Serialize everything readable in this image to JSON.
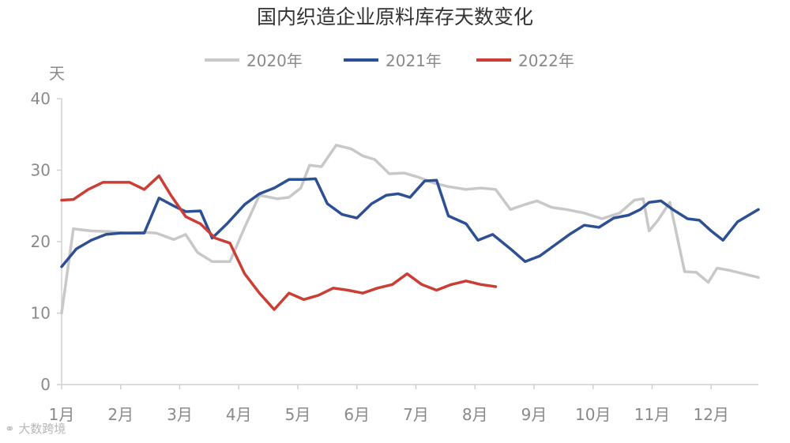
{
  "chart_data": {
    "type": "line",
    "title": "国内织造企业原料库存天数变化",
    "ylabel": "天",
    "ylim": [
      0,
      40
    ],
    "yticks": [
      0,
      10,
      20,
      30,
      40
    ],
    "xticks": [
      "1月",
      "2月",
      "3月",
      "4月",
      "5月",
      "6月",
      "7月",
      "8月",
      "9月",
      "10月",
      "11月",
      "12月"
    ],
    "xlim": [
      1,
      12.8
    ],
    "grid": false,
    "legend": "top",
    "series": [
      {
        "name": "2020年",
        "color": "#c8c8c8",
        "x": [
          1.0,
          1.2,
          1.5,
          1.8,
          2.1,
          2.4,
          2.6,
          2.9,
          3.1,
          3.3,
          3.55,
          3.85,
          4.1,
          4.35,
          4.65,
          4.85,
          5.05,
          5.2,
          5.4,
          5.65,
          5.9,
          6.1,
          6.3,
          6.55,
          6.8,
          7.05,
          7.3,
          7.55,
          7.85,
          8.1,
          8.35,
          8.6,
          8.85,
          9.05,
          9.3,
          9.55,
          9.85,
          10.15,
          10.45,
          10.7,
          10.85,
          10.95,
          11.1,
          11.3,
          11.55,
          11.75,
          11.95,
          12.1,
          12.3,
          12.55,
          12.8
        ],
        "y": [
          10.0,
          21.8,
          21.5,
          21.4,
          21.2,
          21.3,
          21.2,
          20.3,
          21.0,
          18.5,
          17.2,
          17.2,
          22.0,
          26.5,
          26.0,
          26.2,
          27.5,
          30.7,
          30.5,
          33.5,
          33.0,
          32.0,
          31.5,
          29.5,
          29.6,
          29.0,
          28.2,
          27.7,
          27.3,
          27.5,
          27.3,
          24.5,
          25.2,
          25.7,
          24.8,
          24.5,
          24.0,
          23.2,
          24.0,
          25.8,
          26.0,
          21.5,
          23.0,
          25.5,
          15.8,
          15.7,
          14.3,
          16.3,
          16.0,
          15.5,
          15.0
        ]
      },
      {
        "name": "2021年",
        "color": "#2d4f93",
        "x": [
          1.0,
          1.25,
          1.5,
          1.75,
          2.0,
          2.25,
          2.4,
          2.65,
          2.9,
          3.1,
          3.35,
          3.55,
          3.8,
          4.1,
          4.35,
          4.6,
          4.85,
          5.1,
          5.3,
          5.5,
          5.75,
          6.0,
          6.25,
          6.5,
          6.7,
          6.9,
          7.15,
          7.35,
          7.55,
          7.85,
          8.05,
          8.3,
          8.6,
          8.85,
          9.1,
          9.35,
          9.6,
          9.85,
          10.1,
          10.35,
          10.6,
          10.8,
          10.95,
          11.15,
          11.35,
          11.6,
          11.8,
          12.0,
          12.2,
          12.45,
          12.8
        ],
        "y": [
          16.5,
          19.0,
          20.2,
          21.0,
          21.2,
          21.2,
          21.2,
          26.1,
          25.0,
          24.2,
          24.3,
          20.5,
          22.5,
          25.2,
          26.7,
          27.5,
          28.7,
          28.7,
          28.8,
          25.3,
          23.8,
          23.3,
          25.3,
          26.5,
          26.7,
          26.2,
          28.5,
          28.6,
          23.6,
          22.5,
          20.2,
          21.0,
          19.0,
          17.2,
          18.0,
          19.5,
          21.0,
          22.3,
          22.0,
          23.3,
          23.7,
          24.5,
          25.5,
          25.7,
          24.5,
          23.2,
          23.0,
          21.5,
          20.2,
          22.8,
          24.5
        ]
      },
      {
        "name": "2022年",
        "color": "#cc3d34",
        "x": [
          1.0,
          1.2,
          1.45,
          1.7,
          1.95,
          2.15,
          2.4,
          2.65,
          2.85,
          3.1,
          3.35,
          3.6,
          3.85,
          4.1,
          4.35,
          4.6,
          4.85,
          5.1,
          5.35,
          5.6,
          5.85,
          6.1,
          6.35,
          6.6,
          6.85,
          7.1,
          7.35,
          7.6,
          7.85,
          8.1,
          8.35
        ],
        "y": [
          25.8,
          25.9,
          27.3,
          28.3,
          28.3,
          28.3,
          27.3,
          29.2,
          26.5,
          23.5,
          22.5,
          20.5,
          19.8,
          15.5,
          12.8,
          10.5,
          12.8,
          11.9,
          12.5,
          13.5,
          13.2,
          12.8,
          13.5,
          14.0,
          15.5,
          14.0,
          13.2,
          14.0,
          14.5,
          14.0,
          13.7
        ]
      }
    ]
  },
  "watermark": "大数跨境"
}
